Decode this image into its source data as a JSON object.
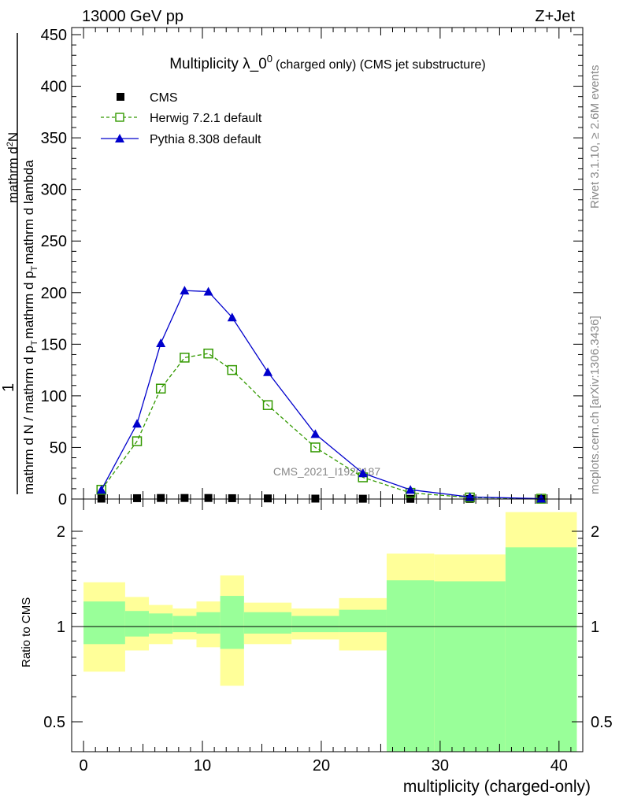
{
  "header": {
    "energy": "13000 GeV pp",
    "process": "Z+Jet"
  },
  "side_labels": {
    "rivet": "Rivet 3.1.10, ≥ 2.6M events",
    "mcplots": "mcplots.cern.ch [arXiv:1306.3436]"
  },
  "watermark": "CMS_2021_I1920187",
  "chart_data": [
    {
      "type": "line",
      "title": "Multiplicity λ_0^0 (charged only) (CMS jet substructure)",
      "title_main": "Multiplicity λ_0",
      "title_sup": "0",
      "title_sub": "(charged only) (CMS jet substructure)",
      "ylabel": "1 / mathrm d N / mathrm d p_T mathrm d p_T mathrm d lambda · mathrm d²N",
      "ylabel_lines": [
        "mathrm d N / mathrm d p",
        "T",
        "mathrm d p",
        "T",
        "mathrm d lambda",
        "mathrm d",
        "2",
        "N",
        "1"
      ],
      "ylim": [
        0,
        460
      ],
      "yticks": [
        0,
        50,
        100,
        150,
        200,
        250,
        300,
        350,
        400,
        450
      ],
      "xlim": [
        -1,
        42
      ],
      "legend_position": "top-left",
      "series": [
        {
          "name": "CMS",
          "color": "#000000",
          "marker": "square-filled",
          "x": [
            1.5,
            4.5,
            6.5,
            8.5,
            10.5,
            12.5,
            15.5,
            19.5,
            23.5,
            27.5,
            32.5,
            38.5
          ],
          "y": [
            0.4,
            0.8,
            1.0,
            1.0,
            1.0,
            0.8,
            0.6,
            0.4,
            0.3,
            0.2,
            0.1,
            0.0
          ]
        },
        {
          "name": "Herwig 7.2.1 default",
          "color": "#339900",
          "marker": "square-open",
          "dashed": true,
          "x": [
            1.5,
            4.5,
            6.5,
            8.5,
            10.5,
            12.5,
            15.5,
            19.5,
            23.5,
            27.5,
            32.5,
            38.5
          ],
          "y": [
            9,
            56,
            107,
            137,
            141,
            125,
            91,
            50,
            21,
            6,
            1.5,
            0.3
          ]
        },
        {
          "name": "Pythia 8.308 default",
          "color": "#0000cc",
          "marker": "triangle-filled",
          "x": [
            1.5,
            4.5,
            6.5,
            8.5,
            10.5,
            12.5,
            15.5,
            19.5,
            23.5,
            27.5,
            32.5,
            38.5
          ],
          "y": [
            9,
            73,
            151,
            202,
            201,
            176,
            123,
            63,
            25,
            9,
            2,
            0.4
          ]
        }
      ]
    },
    {
      "type": "area",
      "ylabel": "Ratio to CMS",
      "xlabel": "multiplicity (charged-only)",
      "xlim": [
        -1,
        42
      ],
      "ylim": [
        0.4,
        2.3
      ],
      "xticks": [
        0,
        10,
        20,
        30,
        40
      ],
      "yticks": [
        0.5,
        1,
        2
      ],
      "reference_line": 1,
      "colors": {
        "stat": "#99ff99",
        "total": "#ffff99"
      },
      "bins": [
        {
          "x0": 0,
          "x1": 3.5,
          "stat_lo": 0.88,
          "stat_hi": 1.2,
          "tot_lo": 0.72,
          "tot_hi": 1.38
        },
        {
          "x0": 3.5,
          "x1": 5.5,
          "stat_lo": 0.93,
          "stat_hi": 1.12,
          "tot_lo": 0.84,
          "tot_hi": 1.24
        },
        {
          "x0": 5.5,
          "x1": 7.5,
          "stat_lo": 0.95,
          "stat_hi": 1.1,
          "tot_lo": 0.88,
          "tot_hi": 1.17
        },
        {
          "x0": 7.5,
          "x1": 9.5,
          "stat_lo": 0.96,
          "stat_hi": 1.08,
          "tot_lo": 0.91,
          "tot_hi": 1.14
        },
        {
          "x0": 9.5,
          "x1": 11.5,
          "stat_lo": 0.95,
          "stat_hi": 1.11,
          "tot_lo": 0.86,
          "tot_hi": 1.2
        },
        {
          "x0": 11.5,
          "x1": 13.5,
          "stat_lo": 0.85,
          "stat_hi": 1.25,
          "tot_lo": 0.65,
          "tot_hi": 1.45
        },
        {
          "x0": 13.5,
          "x1": 17.5,
          "stat_lo": 0.95,
          "stat_hi": 1.11,
          "tot_lo": 0.88,
          "tot_hi": 1.19
        },
        {
          "x0": 17.5,
          "x1": 21.5,
          "stat_lo": 0.96,
          "stat_hi": 1.08,
          "tot_lo": 0.91,
          "tot_hi": 1.14
        },
        {
          "x0": 21.5,
          "x1": 25.5,
          "stat_lo": 0.96,
          "stat_hi": 1.13,
          "tot_lo": 0.84,
          "tot_hi": 1.23
        },
        {
          "x0": 25.5,
          "x1": 29.5,
          "stat_lo": 0.4,
          "stat_hi": 1.4,
          "tot_lo": 0.4,
          "tot_hi": 1.7
        },
        {
          "x0": 29.5,
          "x1": 35.5,
          "stat_lo": 0.4,
          "stat_hi": 1.39,
          "tot_lo": 0.4,
          "tot_hi": 1.69
        },
        {
          "x0": 35.5,
          "x1": 41.5,
          "stat_lo": 0.4,
          "stat_hi": 1.78,
          "tot_lo": 0.4,
          "tot_hi": 2.3
        }
      ]
    }
  ]
}
